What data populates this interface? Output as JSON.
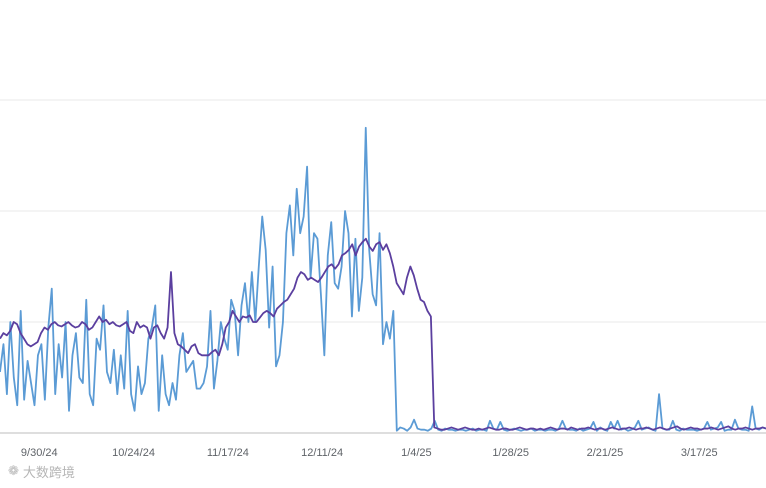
{
  "watermark": {
    "text": "大数跨境",
    "icon": "brand-logo-icon"
  },
  "colors": {
    "series_a": "#5b9bd5",
    "series_b": "#5b3f9f",
    "grid": "#e8e8e8",
    "axis": "#bdbdbd",
    "tick_text": "#5f6368"
  },
  "chart_data": {
    "type": "line",
    "title": "",
    "xlabel": "",
    "ylabel": "",
    "grid": true,
    "legend": "none",
    "x_tick_labels": [
      "9/30/24",
      "10/24/24",
      "11/17/24",
      "12/11/24",
      "1/4/25",
      "1/28/25",
      "2/21/25",
      "3/17/25"
    ],
    "x_range": [
      "9/20/24",
      "4/3/25"
    ],
    "y_range": [
      0,
      300
    ],
    "y_gridlines": [
      100,
      200,
      300
    ],
    "series": [
      {
        "values": [
          55,
          80,
          35,
          100,
          50,
          25,
          110,
          30,
          65,
          45,
          25,
          70,
          80,
          30,
          95,
          130,
          35,
          80,
          50,
          100,
          20,
          70,
          90,
          50,
          45,
          120,
          35,
          25,
          85,
          75,
          115,
          55,
          45,
          75,
          35,
          70,
          40,
          110,
          35,
          20,
          60,
          35,
          45,
          85,
          95,
          115,
          20,
          70,
          35,
          25,
          45,
          30,
          70,
          90,
          55,
          60,
          65,
          40,
          40,
          45,
          60,
          110,
          40,
          65,
          100,
          85,
          75,
          120,
          110,
          70,
          115,
          135,
          100,
          145,
          100,
          150,
          195,
          165,
          95,
          150,
          60,
          70,
          100,
          180,
          205,
          160,
          220,
          180,
          195,
          240,
          140,
          180,
          175,
          125,
          70,
          160,
          190,
          135,
          130,
          150,
          200,
          180,
          105,
          175,
          110,
          140,
          275,
          165,
          125,
          115,
          180,
          80,
          100,
          85,
          110,
          2,
          5,
          4,
          2,
          5,
          12,
          4,
          3,
          3,
          2,
          4,
          11,
          3,
          2,
          4,
          3,
          3,
          2,
          3,
          3,
          2,
          3,
          4,
          2,
          3,
          3,
          2,
          11,
          4,
          3,
          10,
          3,
          2,
          3,
          4,
          3,
          2,
          3,
          3,
          4,
          2,
          3,
          3,
          2,
          3,
          3,
          2,
          4,
          11,
          4,
          3,
          3,
          2,
          4,
          2,
          3,
          4,
          10,
          2,
          5,
          3,
          2,
          10,
          4,
          11,
          3,
          4,
          2,
          3,
          5,
          11,
          3,
          4,
          5,
          3,
          2,
          35,
          4,
          3,
          3,
          11,
          3,
          2,
          4,
          3,
          3,
          3,
          2,
          3,
          4,
          10,
          3,
          4,
          5,
          10,
          2,
          3,
          3,
          12,
          4,
          3,
          3,
          2,
          24,
          4,
          3,
          5,
          4
        ],
        "color": "#5b9bd5"
      },
      {
        "values": [
          85,
          90,
          88,
          92,
          100,
          98,
          90,
          85,
          80,
          78,
          80,
          82,
          90,
          95,
          93,
          98,
          100,
          97,
          96,
          98,
          100,
          97,
          95,
          96,
          100,
          98,
          93,
          95,
          100,
          105,
          100,
          102,
          98,
          100,
          97,
          96,
          98,
          100,
          92,
          90,
          100,
          95,
          97,
          95,
          85,
          95,
          97,
          90,
          85,
          95,
          145,
          90,
          80,
          78,
          75,
          72,
          78,
          80,
          72,
          70,
          70,
          70,
          73,
          75,
          70,
          80,
          95,
          100,
          110,
          105,
          100,
          105,
          104,
          106,
          100,
          100,
          104,
          108,
          110,
          108,
          105,
          112,
          115,
          118,
          120,
          125,
          130,
          140,
          145,
          143,
          138,
          140,
          138,
          136,
          140,
          145,
          150,
          152,
          148,
          152,
          160,
          162,
          165,
          170,
          160,
          168,
          172,
          175,
          168,
          164,
          170,
          172,
          165,
          170,
          162,
          150,
          135,
          130,
          125,
          140,
          150,
          142,
          130,
          120,
          118,
          110,
          105,
          5,
          4,
          3,
          3,
          4,
          5,
          4,
          3,
          4,
          5,
          4,
          3,
          3,
          4,
          3,
          4,
          5,
          4,
          3,
          3,
          4,
          4,
          3,
          3,
          4,
          5,
          4,
          3,
          4,
          4,
          3,
          4,
          3,
          4,
          5,
          4,
          3,
          4,
          4,
          3,
          5,
          4,
          3,
          4,
          4,
          5,
          4,
          3,
          4,
          4,
          3,
          4,
          5,
          4,
          3,
          4,
          4,
          5,
          4,
          3,
          4,
          4,
          5,
          4,
          3,
          4,
          5,
          4,
          3,
          4,
          5,
          6,
          4,
          3,
          4,
          5,
          4,
          4,
          3,
          4,
          4,
          5,
          4,
          3,
          4,
          5,
          6,
          4,
          3,
          4,
          4,
          5,
          4,
          3,
          4,
          4,
          5,
          4
        ],
        "color": "#5b3f9f"
      }
    ]
  }
}
